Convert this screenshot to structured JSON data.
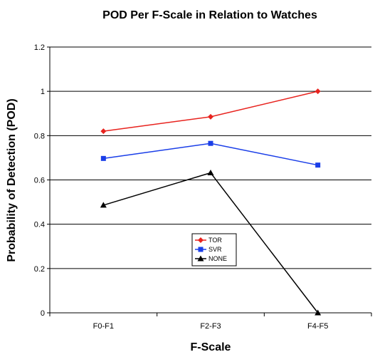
{
  "chart_data": {
    "type": "line",
    "title": "POD Per F-Scale in Relation to Watches",
    "xlabel": "F-Scale",
    "ylabel": "Probability of Detection (POD)",
    "categories": [
      "F0-F1",
      "F2-F3",
      "F4-F5"
    ],
    "ylim": [
      0,
      1.2
    ],
    "yticks": [
      "0",
      "0.2",
      "0.4",
      "0.6",
      "0.8",
      "1",
      "1.2"
    ],
    "grid": true,
    "legend_position": "center",
    "series": [
      {
        "name": "TOR",
        "values": [
          0.82,
          0.885,
          1.0
        ],
        "color": "#e8231e",
        "marker": "diamond"
      },
      {
        "name": "SVR",
        "values": [
          0.697,
          0.765,
          0.667
        ],
        "color": "#1a3ee8",
        "marker": "square"
      },
      {
        "name": "NONE",
        "values": [
          0.486,
          0.632,
          0.0
        ],
        "color": "#000000",
        "marker": "triangle"
      }
    ]
  }
}
